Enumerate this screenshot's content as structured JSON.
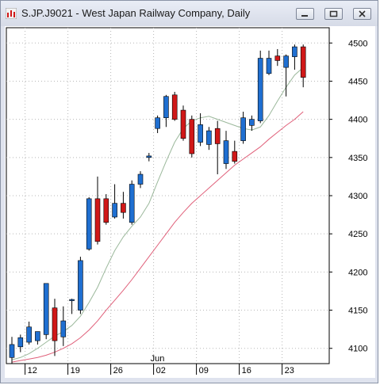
{
  "window": {
    "title": "S.JP.J9021 - West Japan Railway Company, Daily",
    "controls": [
      "minimize",
      "maximize",
      "close"
    ]
  },
  "chart_data": {
    "type": "candlestick",
    "ylim": [
      4080,
      4520
    ],
    "y_ticks": [
      4100,
      4150,
      4200,
      4250,
      4300,
      4350,
      4400,
      4450,
      4500
    ],
    "x_labels": [
      {
        "label": "12",
        "index": 2
      },
      {
        "label": "19",
        "index": 7
      },
      {
        "label": "26",
        "index": 12
      },
      {
        "label": "02",
        "index": 17
      },
      {
        "label": "09",
        "index": 22
      },
      {
        "label": "16",
        "index": 27
      },
      {
        "label": "23",
        "index": 32
      }
    ],
    "month_labels": [
      {
        "label": "Jun",
        "index": 17
      }
    ],
    "grid": true,
    "colors": {
      "up": "#1f6fd1",
      "down": "#d01818",
      "ma_short": "#9bb89b",
      "ma_long": "#e0607a"
    },
    "candles": [
      {
        "o": 4088,
        "h": 4115,
        "l": 4080,
        "c": 4105
      },
      {
        "o": 4102,
        "h": 4118,
        "l": 4095,
        "c": 4114
      },
      {
        "o": 4108,
        "h": 4135,
        "l": 4105,
        "c": 4128
      },
      {
        "o": 4110,
        "h": 4122,
        "l": 4105,
        "c": 4122
      },
      {
        "o": 4118,
        "h": 4185,
        "l": 4112,
        "c": 4185
      },
      {
        "o": 4153,
        "h": 4165,
        "l": 4090,
        "c": 4110
      },
      {
        "o": 4115,
        "h": 4155,
        "l": 4103,
        "c": 4136
      },
      {
        "o": 4163,
        "h": 4165,
        "l": 4145,
        "c": 4164
      },
      {
        "o": 4150,
        "h": 4220,
        "l": 4145,
        "c": 4215
      },
      {
        "o": 4230,
        "h": 4298,
        "l": 4228,
        "c": 4296
      },
      {
        "o": 4296,
        "h": 4325,
        "l": 4236,
        "c": 4240
      },
      {
        "o": 4296,
        "h": 4302,
        "l": 4262,
        "c": 4265
      },
      {
        "o": 4272,
        "h": 4315,
        "l": 4270,
        "c": 4290
      },
      {
        "o": 4290,
        "h": 4305,
        "l": 4270,
        "c": 4278
      },
      {
        "o": 4265,
        "h": 4320,
        "l": 4262,
        "c": 4315
      },
      {
        "o": 4315,
        "h": 4332,
        "l": 4310,
        "c": 4328
      },
      {
        "o": 4350,
        "h": 4356,
        "l": 4345,
        "c": 4352
      },
      {
        "o": 4388,
        "h": 4405,
        "l": 4382,
        "c": 4402
      },
      {
        "o": 4402,
        "h": 4432,
        "l": 4390,
        "c": 4430
      },
      {
        "o": 4432,
        "h": 4436,
        "l": 4398,
        "c": 4400
      },
      {
        "o": 4412,
        "h": 4418,
        "l": 4372,
        "c": 4375
      },
      {
        "o": 4400,
        "h": 4405,
        "l": 4350,
        "c": 4355
      },
      {
        "o": 4370,
        "h": 4408,
        "l": 4365,
        "c": 4393
      },
      {
        "o": 4367,
        "h": 4390,
        "l": 4360,
        "c": 4385
      },
      {
        "o": 4388,
        "h": 4398,
        "l": 4328,
        "c": 4368
      },
      {
        "o": 4342,
        "h": 4385,
        "l": 4335,
        "c": 4372
      },
      {
        "o": 4358,
        "h": 4372,
        "l": 4342,
        "c": 4345
      },
      {
        "o": 4372,
        "h": 4410,
        "l": 4368,
        "c": 4402
      },
      {
        "o": 4392,
        "h": 4405,
        "l": 4385,
        "c": 4400
      },
      {
        "o": 4398,
        "h": 4490,
        "l": 4395,
        "c": 4480
      },
      {
        "o": 4460,
        "h": 4490,
        "l": 4458,
        "c": 4480
      },
      {
        "o": 4483,
        "h": 4492,
        "l": 4470,
        "c": 4477
      },
      {
        "o": 4468,
        "h": 4485,
        "l": 4430,
        "c": 4483
      },
      {
        "o": 4482,
        "h": 4498,
        "l": 4465,
        "c": 4495
      },
      {
        "o": 4495,
        "h": 4498,
        "l": 4442,
        "c": 4455
      }
    ],
    "ma_short": [
      4085,
      4088,
      4093,
      4100,
      4108,
      4116,
      4122,
      4130,
      4142,
      4160,
      4180,
      4205,
      4228,
      4246,
      4260,
      4272,
      4290,
      4318,
      4345,
      4370,
      4388,
      4398,
      4402,
      4404,
      4400,
      4396,
      4392,
      4388,
      4386,
      4390,
      4405,
      4424,
      4442,
      4458,
      4468
    ],
    "ma_long": [
      4082,
      4084,
      4086,
      4088,
      4091,
      4095,
      4100,
      4106,
      4114,
      4124,
      4136,
      4150,
      4163,
      4176,
      4190,
      4205,
      4220,
      4235,
      4250,
      4265,
      4278,
      4290,
      4300,
      4310,
      4320,
      4330,
      4340,
      4348,
      4356,
      4364,
      4374,
      4383,
      4392,
      4400,
      4410
    ]
  }
}
